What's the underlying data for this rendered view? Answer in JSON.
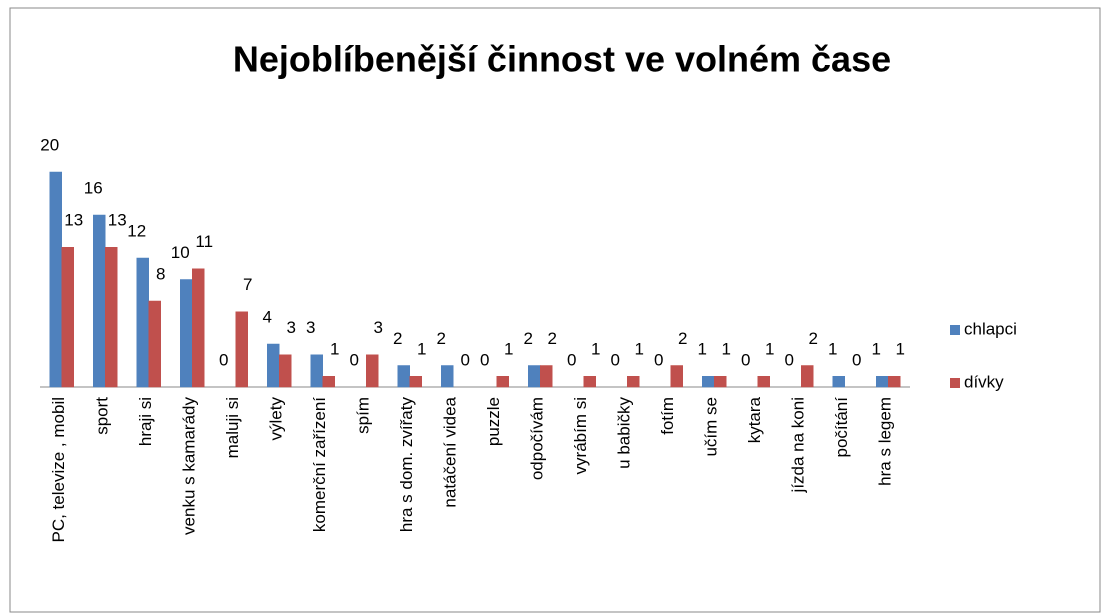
{
  "chart_data": {
    "type": "bar",
    "title": "Nejoblíbenější činnost ve volném čase",
    "categories": [
      "PC, televize , mobil",
      "sport",
      "hraji si",
      "venku s kamarády",
      "maluji si",
      "výlety",
      "komerční zařízení",
      "spím",
      "hra s dom. zvířaty",
      "natáčení videa",
      "puzzle",
      "odpočívám",
      "vyrábím si",
      "u babičky",
      "fotím",
      "učím se",
      "kytara",
      "jízda na koni",
      "počítání",
      "hra s legem"
    ],
    "series": [
      {
        "name": "chlapci",
        "color": "#4f81bd",
        "values": [
          20,
          16,
          12,
          10,
          0,
          4,
          3,
          0,
          2,
          2,
          0,
          2,
          0,
          0,
          0,
          1,
          0,
          0,
          1,
          1
        ]
      },
      {
        "name": "dívky",
        "color": "#c0504d",
        "values": [
          13,
          13,
          8,
          11,
          7,
          3,
          1,
          3,
          1,
          0,
          1,
          2,
          1,
          1,
          2,
          1,
          1,
          2,
          0,
          1
        ]
      }
    ],
    "legend": "right"
  }
}
